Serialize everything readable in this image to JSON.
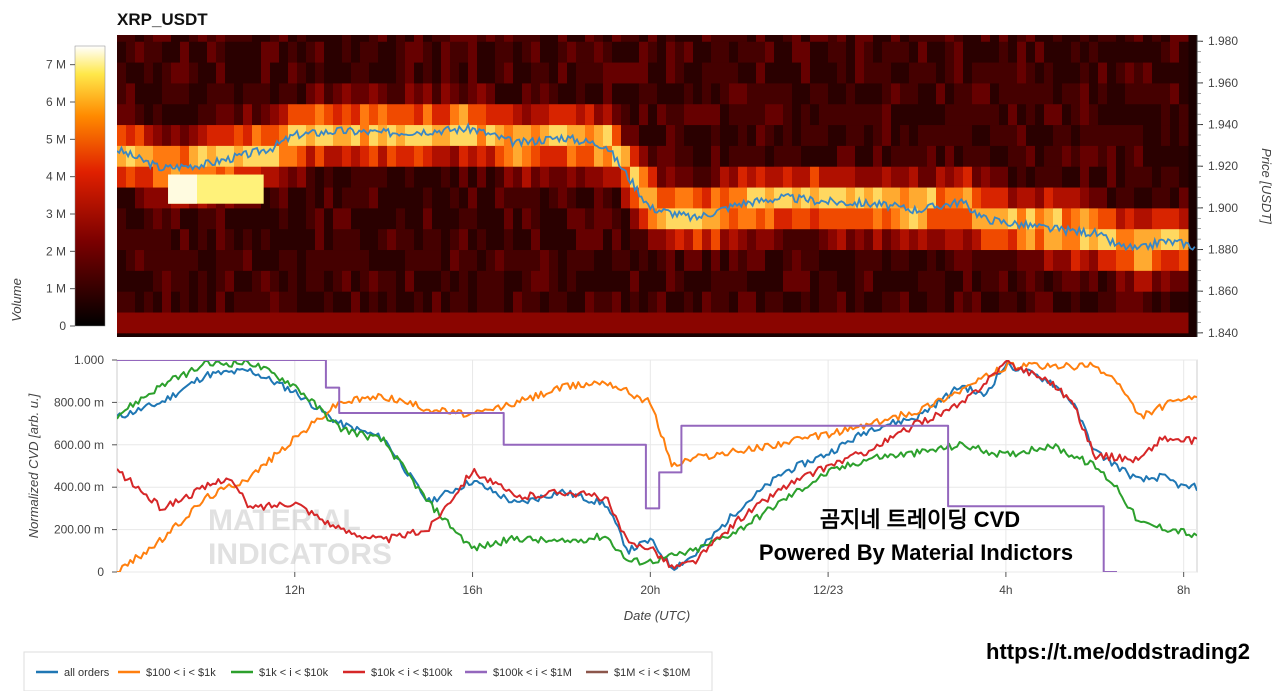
{
  "chart_data": [
    {
      "type": "heatmap",
      "title": "XRP_USDT",
      "colorbar": {
        "label": "Volume",
        "ticks": [
          "0",
          "1 M",
          "2 M",
          "3 M",
          "4 M",
          "5 M",
          "6 M",
          "7 M"
        ],
        "max": 7.5
      },
      "y_right_label": "Price [USDT]",
      "y_right_ticks": [
        "1.840",
        "1.860",
        "1.880",
        "1.900",
        "1.920",
        "1.940",
        "1.960",
        "1.980"
      ],
      "ylim": [
        1.838,
        1.983
      ],
      "xlim_hours": [
        8.0,
        32.3
      ],
      "price_levels": [
        1.84,
        1.85,
        1.86,
        1.87,
        1.88,
        1.89,
        1.9,
        1.91,
        1.92,
        1.93,
        1.94,
        1.95,
        1.96,
        1.97,
        1.98
      ],
      "price_line": {
        "color": "#3a87c4",
        "x": [
          8.0,
          9.0,
          10.0,
          11.0,
          11.5,
          12.0,
          13.0,
          14.0,
          15.0,
          16.0,
          17.0,
          18.0,
          19.0,
          19.5,
          20.0,
          21.0,
          22.0,
          23.0,
          24.0,
          25.0,
          26.0,
          27.0,
          27.5,
          28.0,
          29.0,
          30.0,
          30.5,
          31.0,
          31.5,
          32.0,
          32.3
        ],
        "y": [
          1.928,
          1.919,
          1.921,
          1.926,
          1.929,
          1.935,
          1.937,
          1.936,
          1.937,
          1.938,
          1.931,
          1.934,
          1.93,
          1.915,
          1.9,
          1.895,
          1.902,
          1.905,
          1.903,
          1.902,
          1.899,
          1.903,
          1.895,
          1.893,
          1.89,
          1.888,
          1.882,
          1.88,
          1.884,
          1.883,
          1.881
        ]
      }
    },
    {
      "type": "line",
      "x_label": "Date (UTC)",
      "y_label": "Normalized CVD [arb. u.]",
      "x_ticks": [
        "12h",
        "16h",
        "20h",
        "12/23",
        "4h",
        "8h"
      ],
      "x_tick_hours": [
        12,
        16,
        20,
        24,
        28,
        32
      ],
      "y_ticks": [
        "0",
        "200.00 m",
        "400.00 m",
        "600.00 m",
        "800.00 m",
        "1.000"
      ],
      "ylim": [
        0,
        1
      ],
      "xlim_hours": [
        8.0,
        32.3
      ],
      "series": [
        {
          "name": "all orders",
          "color": "#1f77b4",
          "x": [
            8.0,
            9.0,
            10.0,
            11.0,
            12.0,
            13.0,
            14.0,
            15.0,
            16.0,
            17.0,
            18.0,
            19.0,
            19.5,
            20.0,
            20.5,
            21.0,
            22.0,
            23.0,
            24.0,
            25.0,
            26.0,
            27.0,
            27.5,
            28.0,
            29.0,
            29.5,
            30.0,
            31.0,
            31.5,
            32.0,
            32.3
          ],
          "y": [
            0.73,
            0.8,
            0.93,
            0.95,
            0.85,
            0.7,
            0.63,
            0.33,
            0.43,
            0.32,
            0.38,
            0.32,
            0.1,
            0.15,
            0.02,
            0.08,
            0.3,
            0.47,
            0.56,
            0.68,
            0.73,
            0.88,
            0.83,
            0.98,
            0.9,
            0.8,
            0.57,
            0.43,
            0.45,
            0.4,
            0.4
          ]
        },
        {
          "name": "$100 < i < $1k",
          "color": "#ff7f0e",
          "x": [
            8.0,
            9.0,
            10.0,
            11.0,
            12.0,
            13.0,
            14.0,
            15.0,
            16.0,
            17.0,
            18.0,
            19.0,
            20.0,
            20.5,
            21.0,
            22.0,
            23.0,
            24.0,
            25.0,
            26.0,
            27.0,
            28.0,
            29.0,
            30.0,
            30.5,
            31.0,
            31.5,
            32.0,
            32.3
          ],
          "y": [
            0.0,
            0.15,
            0.35,
            0.45,
            0.63,
            0.8,
            0.83,
            0.77,
            0.74,
            0.8,
            0.87,
            0.9,
            0.8,
            0.5,
            0.54,
            0.57,
            0.61,
            0.65,
            0.7,
            0.76,
            0.86,
            0.97,
            0.97,
            0.97,
            0.9,
            0.73,
            0.78,
            0.82,
            0.81
          ]
        },
        {
          "name": "$1k < i < $10k",
          "color": "#2ca02c",
          "x": [
            8.0,
            9.0,
            10.0,
            11.0,
            12.0,
            13.0,
            14.0,
            15.0,
            16.0,
            17.0,
            18.0,
            19.0,
            19.5,
            20.0,
            21.0,
            22.0,
            23.0,
            24.0,
            25.0,
            26.0,
            27.0,
            28.0,
            29.0,
            30.0,
            30.5,
            31.0,
            32.0,
            32.3
          ],
          "y": [
            0.74,
            0.88,
            0.98,
            0.99,
            0.88,
            0.68,
            0.62,
            0.33,
            0.11,
            0.16,
            0.14,
            0.17,
            0.05,
            0.05,
            0.1,
            0.2,
            0.34,
            0.47,
            0.54,
            0.56,
            0.6,
            0.55,
            0.6,
            0.5,
            0.4,
            0.23,
            0.19,
            0.16
          ]
        },
        {
          "name": "$10k < i < $100k",
          "color": "#d62728",
          "x": [
            8.0,
            9.0,
            10.0,
            10.5,
            11.0,
            12.0,
            13.0,
            14.0,
            15.0,
            16.0,
            17.0,
            18.0,
            19.0,
            19.5,
            20.0,
            20.5,
            21.0,
            22.0,
            23.0,
            24.0,
            25.0,
            26.0,
            27.0,
            28.0,
            29.0,
            29.5,
            30.0,
            31.0,
            31.5,
            32.0,
            32.3
          ],
          "y": [
            0.48,
            0.3,
            0.4,
            0.45,
            0.3,
            0.33,
            0.2,
            0.15,
            0.2,
            0.48,
            0.35,
            0.38,
            0.35,
            0.13,
            0.12,
            0.02,
            0.05,
            0.25,
            0.4,
            0.5,
            0.58,
            0.7,
            0.79,
            0.99,
            0.9,
            0.8,
            0.55,
            0.53,
            0.63,
            0.62,
            0.62
          ]
        },
        {
          "name": "$100k < i < $1M",
          "color": "#9467bd",
          "x": [
            8.0,
            12.7,
            12.7,
            13.0,
            13.0,
            16.7,
            16.7,
            19.9,
            19.9,
            20.2,
            20.2,
            20.7,
            20.7,
            21.2,
            21.2,
            26.7,
            26.7,
            30.2,
            30.2,
            30.5,
            30.5
          ],
          "y": [
            1.0,
            1.0,
            0.87,
            0.87,
            0.75,
            0.75,
            0.6,
            0.6,
            0.3,
            0.3,
            0.47,
            0.47,
            0.69,
            0.69,
            0.69,
            0.69,
            0.31,
            0.31,
            0.0,
            0.0,
            0.0
          ]
        },
        {
          "name": "$1M < i < $10M",
          "color": "#8c564b",
          "x": [],
          "y": []
        }
      ]
    }
  ],
  "overlay_text": {
    "line1": "곰지네 트레이딩 CVD",
    "line2": "Powered By Material Indictors",
    "url": "https://t.me/oddstrading2"
  },
  "watermark": {
    "line1": "MATERIAL",
    "line2": "INDICATORS"
  }
}
